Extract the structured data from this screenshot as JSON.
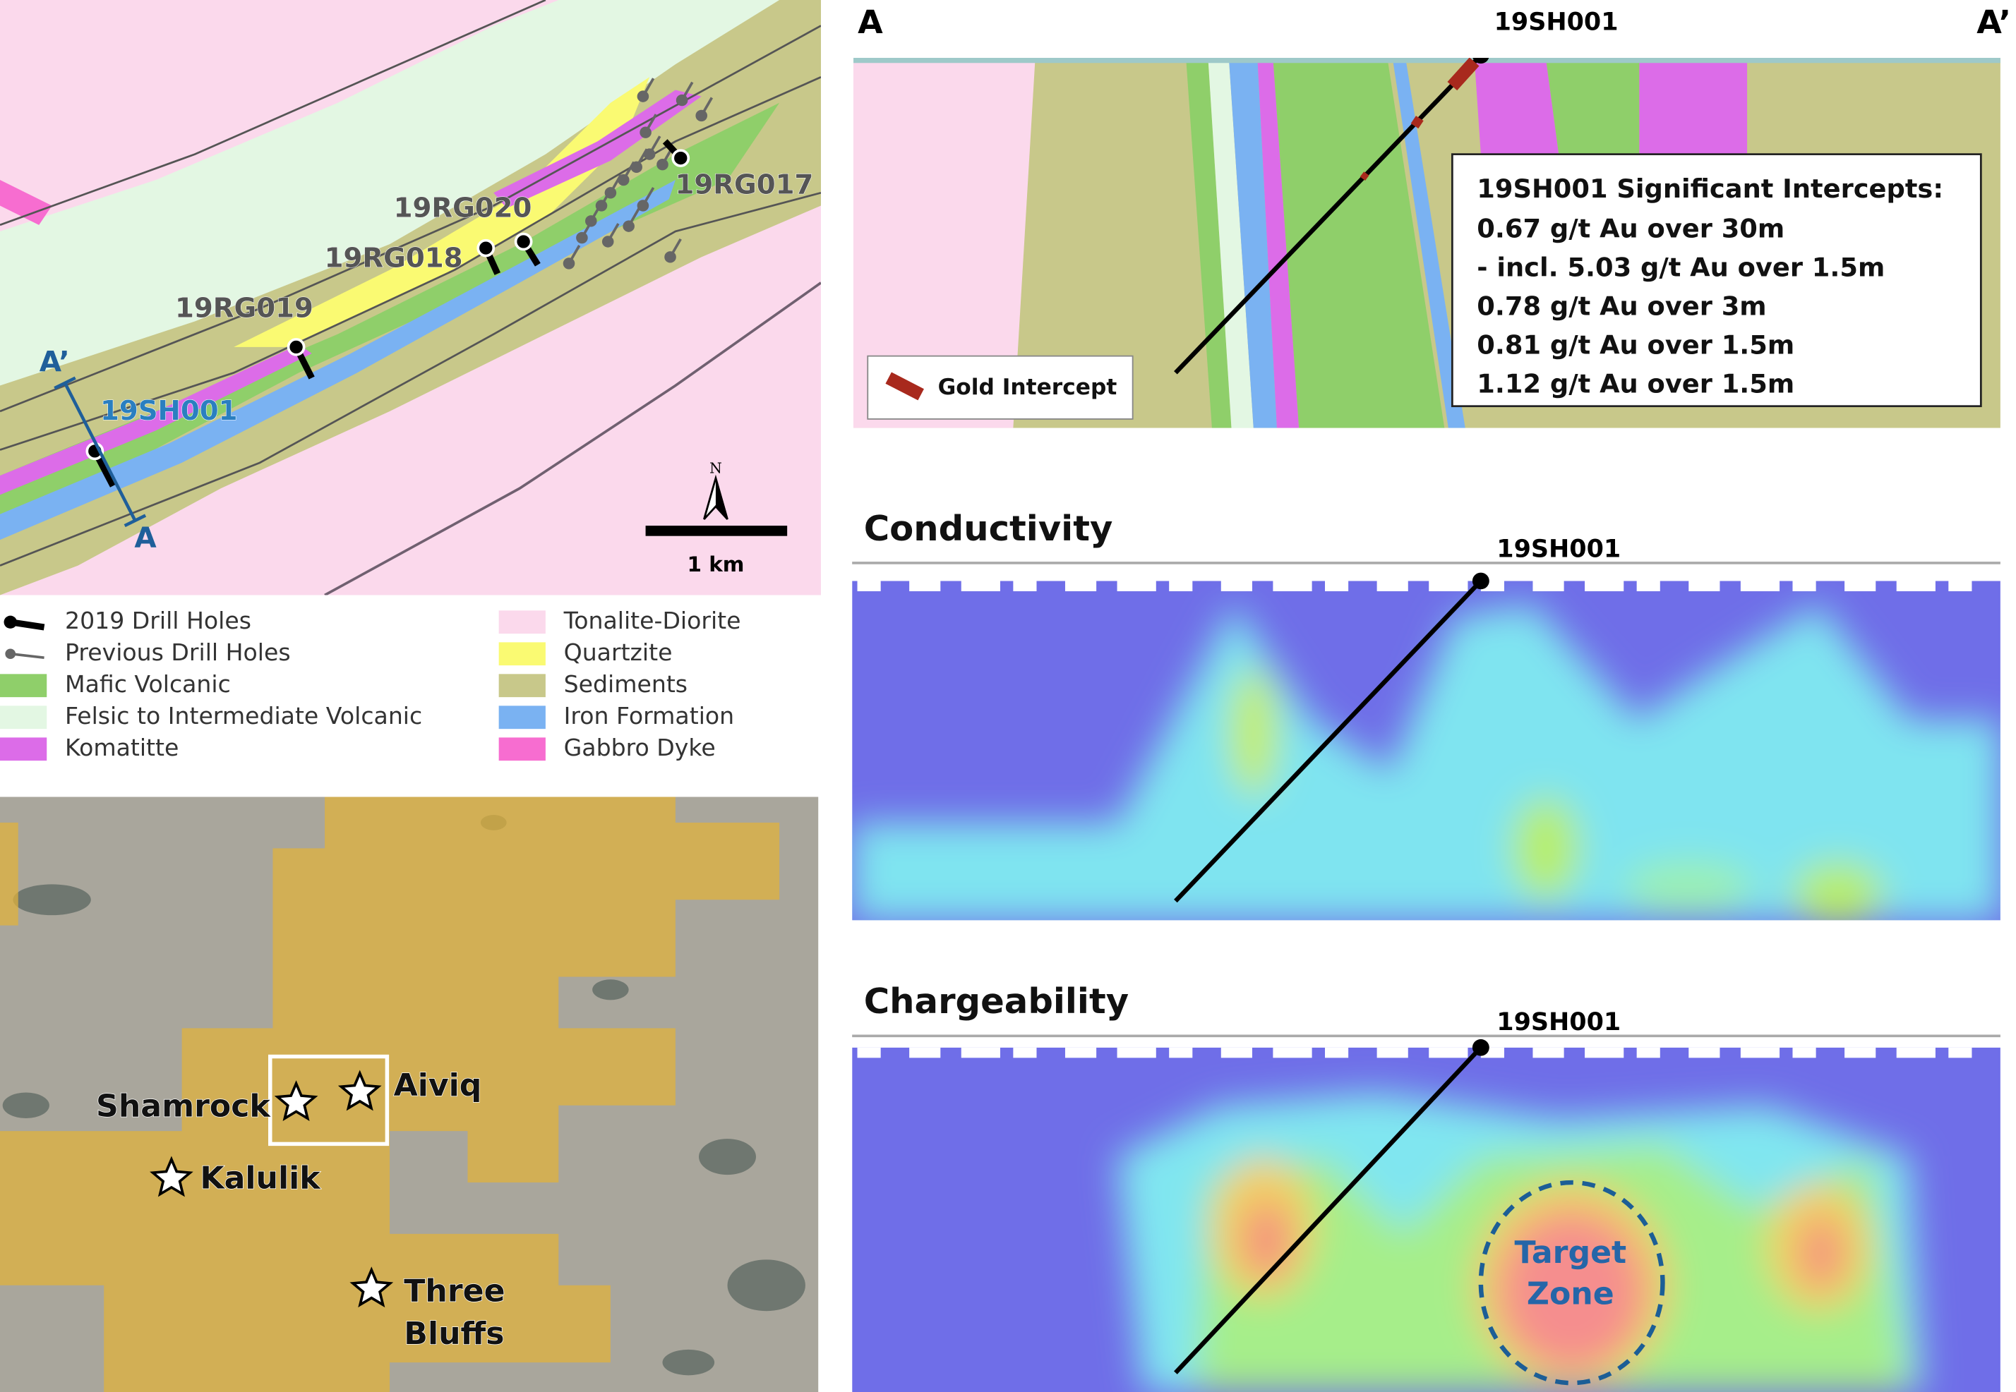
{
  "geology_map": {
    "drill_holes": [
      "19RG020",
      "19RG017",
      "19RG018",
      "19RG019",
      "19SH001"
    ],
    "section_ends": [
      "A’",
      "A"
    ],
    "north": "N",
    "scale_bar": "1 km"
  },
  "legend": {
    "symbols": [
      "2019 Drill Holes",
      "Previous Drill Holes"
    ],
    "units": [
      {
        "label": "Mafic Volcanic",
        "color": "#8fcf6a"
      },
      {
        "label": "Felsic to Intermediate Volcanic",
        "color": "#e3f7e3"
      },
      {
        "label": "Komatitte",
        "color": "#dc6ce8"
      },
      {
        "label": "Tonalite-Diorite",
        "color": "#fbd9ec"
      },
      {
        "label": "Quartzite",
        "color": "#fafa72"
      },
      {
        "label": "Sediments",
        "color": "#c8c88a"
      },
      {
        "label": "Iron Formation",
        "color": "#7ab2f2"
      },
      {
        "label": "Gabbro Dyke",
        "color": "#f76dd0"
      }
    ]
  },
  "location_map": {
    "sites": [
      [
        "Shamrock"
      ],
      [
        "Aiviq"
      ],
      [
        "Kalulik"
      ],
      [
        "Three",
        "Bluffs"
      ]
    ]
  },
  "cross_section": {
    "start": "A",
    "end": "A’",
    "hole": "19SH001",
    "intercepts": {
      "title": "19SH001 Significant Intercepts:",
      "lines": [
        "0.67 g/t Au over 30m",
        "- incl. 5.03 g/t Au over 1.5m",
        "0.78 g/t Au over 3m",
        "0.81 g/t Au over 1.5m",
        "1.12 g/t Au over 1.5m"
      ]
    },
    "legend": "Gold Intercept"
  },
  "conductivity": {
    "title": "Conductivity",
    "hole": "19SH001"
  },
  "chargeability": {
    "title": "Chargeability",
    "hole": "19SH001",
    "target": [
      "Target",
      "Zone"
    ]
  }
}
